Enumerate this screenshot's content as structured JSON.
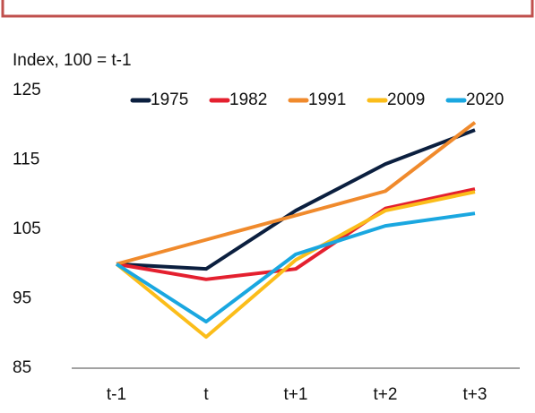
{
  "chart_data": {
    "type": "line",
    "y_axis_label": "Index, 100 = t-1",
    "categories": [
      "t-1",
      "t",
      "t+1",
      "t+2",
      "t+3"
    ],
    "series": [
      {
        "name": "1975",
        "color": "#0b1f3f",
        "values": [
          100,
          99.3,
          107.7,
          114.4,
          119.3
        ]
      },
      {
        "name": "1982",
        "color": "#e4202f",
        "values": [
          100,
          97.8,
          99.3,
          108,
          110.8
        ]
      },
      {
        "name": "1991",
        "color": "#f08a2c",
        "values": [
          100,
          103.5,
          107,
          110.5,
          120.4
        ]
      },
      {
        "name": "2009",
        "color": "#fbbd1a",
        "values": [
          100,
          89.5,
          100.6,
          107.7,
          110.4
        ]
      },
      {
        "name": "2020",
        "color": "#1aa7e0",
        "values": [
          100,
          91.7,
          101.4,
          105.5,
          107.3
        ]
      }
    ],
    "ylim": [
      85,
      125
    ],
    "yticks": [
      85,
      95,
      105,
      115,
      125
    ],
    "legend": "top"
  }
}
